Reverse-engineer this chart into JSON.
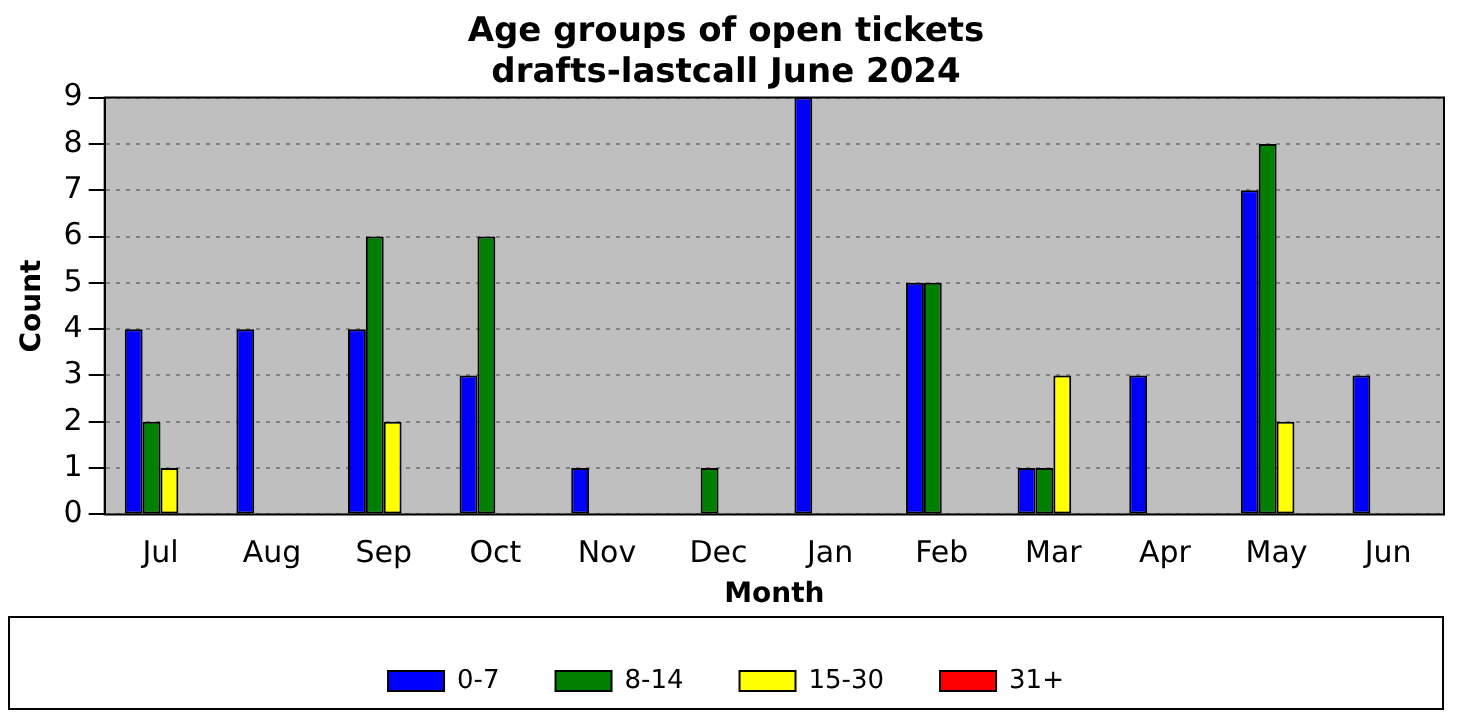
{
  "chart_data": {
    "type": "bar",
    "title": "Age groups of open tickets\ndrafts-lastcall June 2024",
    "xlabel": "Month",
    "ylabel": "Count",
    "categories": [
      "Jul",
      "Aug",
      "Sep",
      "Oct",
      "Nov",
      "Dec",
      "Jan",
      "Feb",
      "Mar",
      "Apr",
      "May",
      "Jun"
    ],
    "series": [
      {
        "name": "0-7",
        "color": "#0000ff",
        "values": [
          4,
          4,
          4,
          3,
          1,
          0,
          9,
          5,
          1,
          3,
          7,
          3
        ]
      },
      {
        "name": "8-14",
        "color": "#008000",
        "values": [
          2,
          0,
          6,
          6,
          0,
          1,
          0,
          5,
          1,
          0,
          8,
          0
        ]
      },
      {
        "name": "15-30",
        "color": "#ffff00",
        "values": [
          1,
          0,
          2,
          0,
          0,
          0,
          0,
          0,
          3,
          0,
          2,
          0
        ]
      },
      {
        "name": "31+",
        "color": "#ff0000",
        "values": [
          0,
          0,
          0,
          0,
          0,
          0,
          0,
          0,
          0,
          0,
          0,
          0
        ]
      }
    ],
    "ylim": [
      0,
      9
    ],
    "yticks": [
      0,
      1,
      2,
      3,
      4,
      5,
      6,
      7,
      8,
      9
    ],
    "grid": "y",
    "legend": "bottom"
  }
}
